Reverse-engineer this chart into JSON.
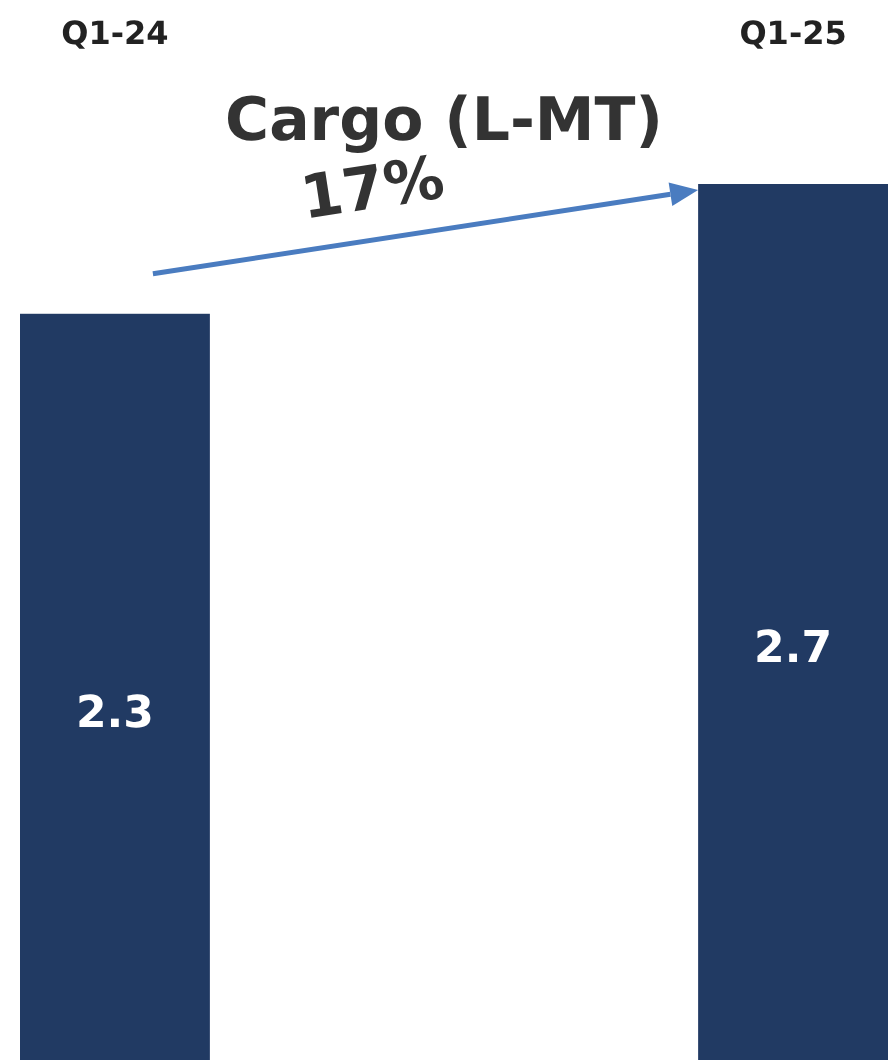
{
  "chart_data": {
    "type": "bar",
    "title": "Cargo (L-MT)",
    "categories": [
      "Q1-24",
      "Q1-25"
    ],
    "values": [
      2.3,
      2.7
    ],
    "color": "#213a63",
    "data_labels": true,
    "annotations": [
      "17%"
    ]
  }
}
